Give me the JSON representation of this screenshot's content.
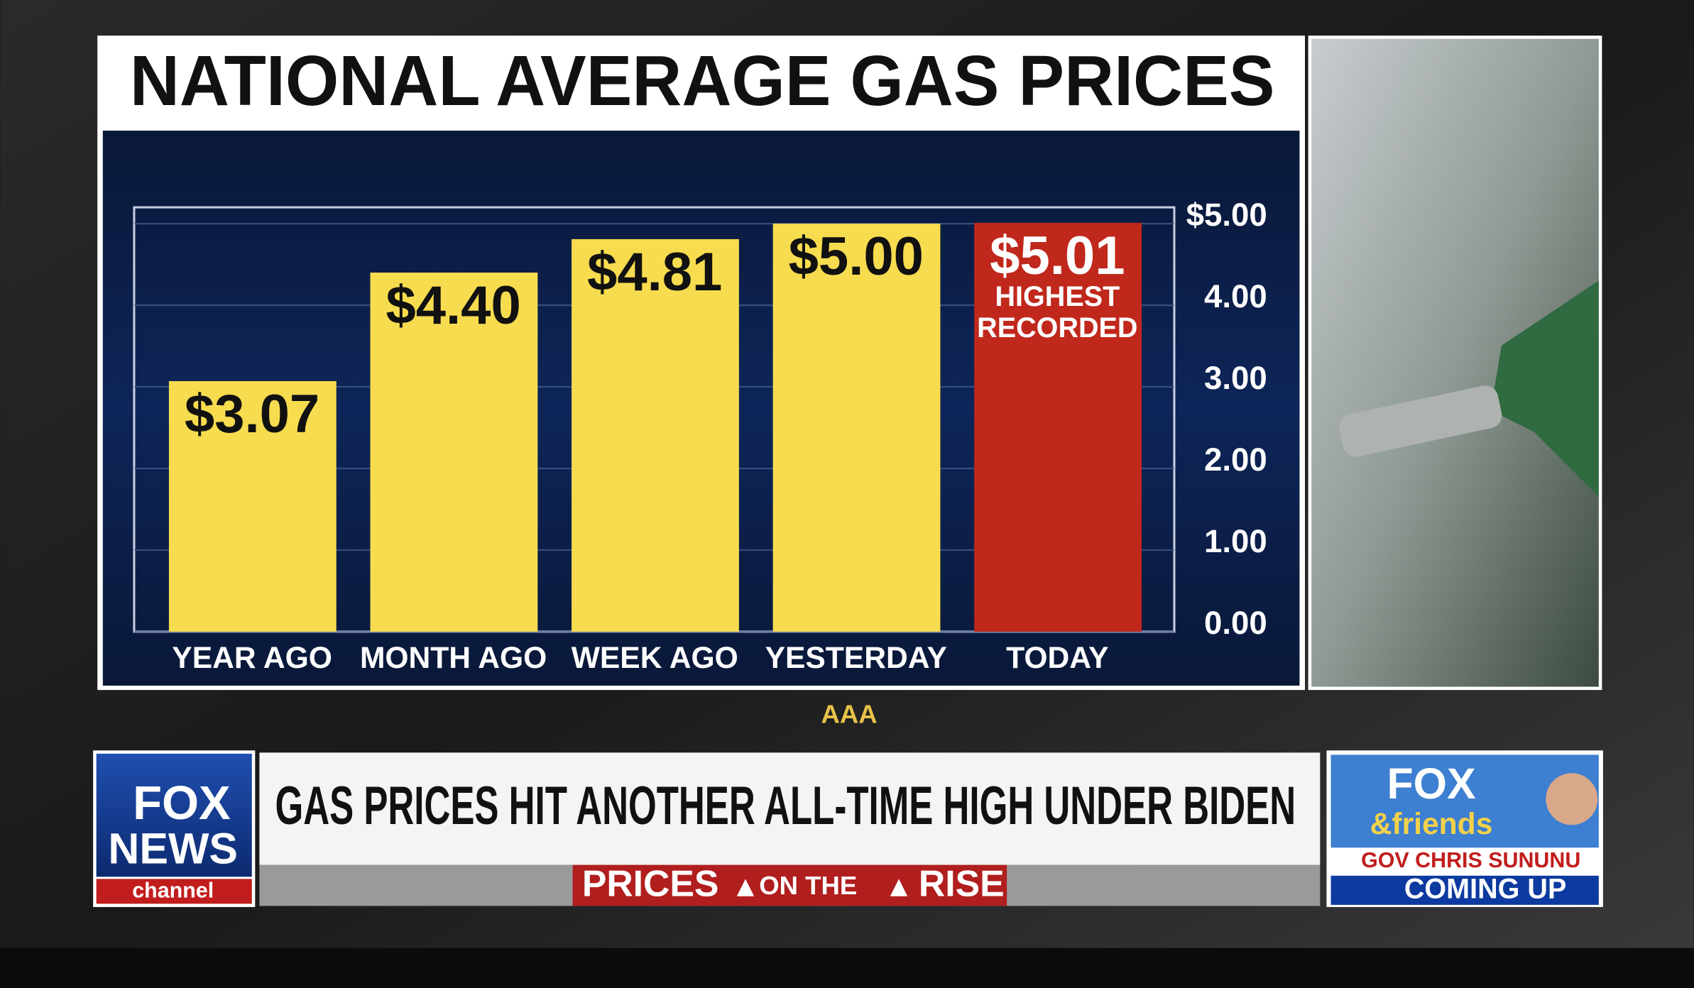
{
  "chart_data": {
    "type": "bar",
    "title": "NATIONAL AVERAGE GAS PRICES",
    "categories": [
      "YEAR AGO",
      "MONTH AGO",
      "WEEK AGO",
      "YESTERDAY",
      "TODAY"
    ],
    "values": [
      3.07,
      4.4,
      4.81,
      5.0,
      5.01
    ],
    "value_labels": [
      "$3.07",
      "$4.40",
      "$4.81",
      "$5.00",
      "$5.01"
    ],
    "colors": [
      "#f7dc4f",
      "#f7dc4f",
      "#f7dc4f",
      "#f7dc4f",
      "#c0281c"
    ],
    "annotation": [
      "HIGHEST",
      "RECORDED"
    ],
    "ylim": [
      0,
      5.2
    ],
    "yticks": [
      {
        "value": 0,
        "label": "0.00"
      },
      {
        "value": 1,
        "label": "1.00"
      },
      {
        "value": 2,
        "label": "2.00"
      },
      {
        "value": 3,
        "label": "3.00"
      },
      {
        "value": 4,
        "label": "4.00"
      },
      {
        "value": 5,
        "label": "$5.00"
      }
    ],
    "grid": true,
    "source": "AAA"
  },
  "ticker": {
    "headline": "GAS PRICES HIT ANOTHER ALL-TIME HIGH UNDER BIDEN",
    "strap": [
      "PRICES",
      "ON THE",
      "RISE"
    ],
    "logo": [
      "FOX",
      "NEWS",
      "channel"
    ],
    "show": [
      "FOX",
      "&friends"
    ],
    "guest": "GOV CHRIS SUNUNU",
    "status": "COMING UP"
  }
}
